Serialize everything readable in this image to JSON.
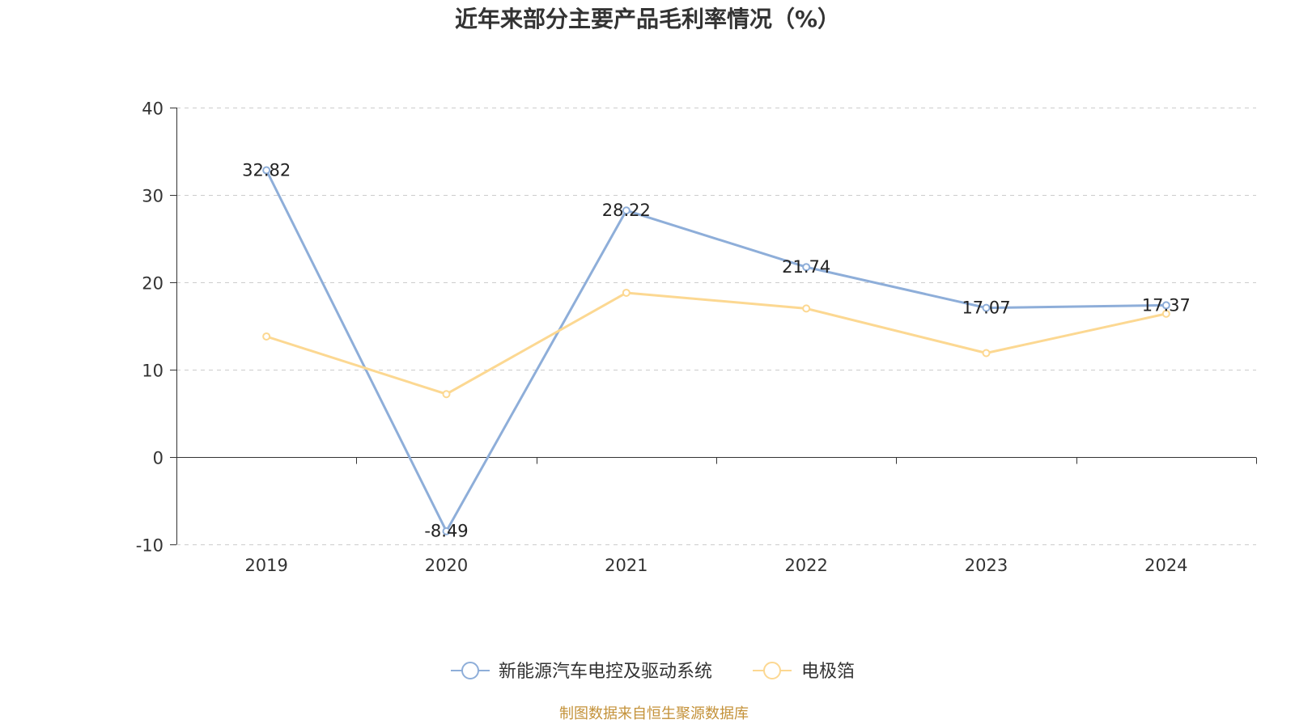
{
  "chart_data": {
    "type": "line",
    "title": "近年来部分主要产品毛利率情况（%）",
    "categories": [
      "2019",
      "2020",
      "2021",
      "2022",
      "2023",
      "2024"
    ],
    "yticks": [
      -10,
      0,
      10,
      20,
      30,
      40
    ],
    "ylim": [
      -10,
      40
    ],
    "grid": true,
    "legend_position": "bottom",
    "series": [
      {
        "name": "新能源汽车电控及驱动系统",
        "color": "#8eaed9",
        "values": [
          32.82,
          -8.49,
          28.22,
          21.74,
          17.07,
          17.37
        ],
        "show_data_labels": true
      },
      {
        "name": "电极箔",
        "color": "#fcd892",
        "values": [
          13.8,
          7.2,
          18.8,
          17.0,
          11.9,
          16.4
        ],
        "show_data_labels": false
      }
    ]
  },
  "footer": {
    "source_note": "制图数据来自恒生聚源数据库",
    "color": "#c4923a"
  }
}
